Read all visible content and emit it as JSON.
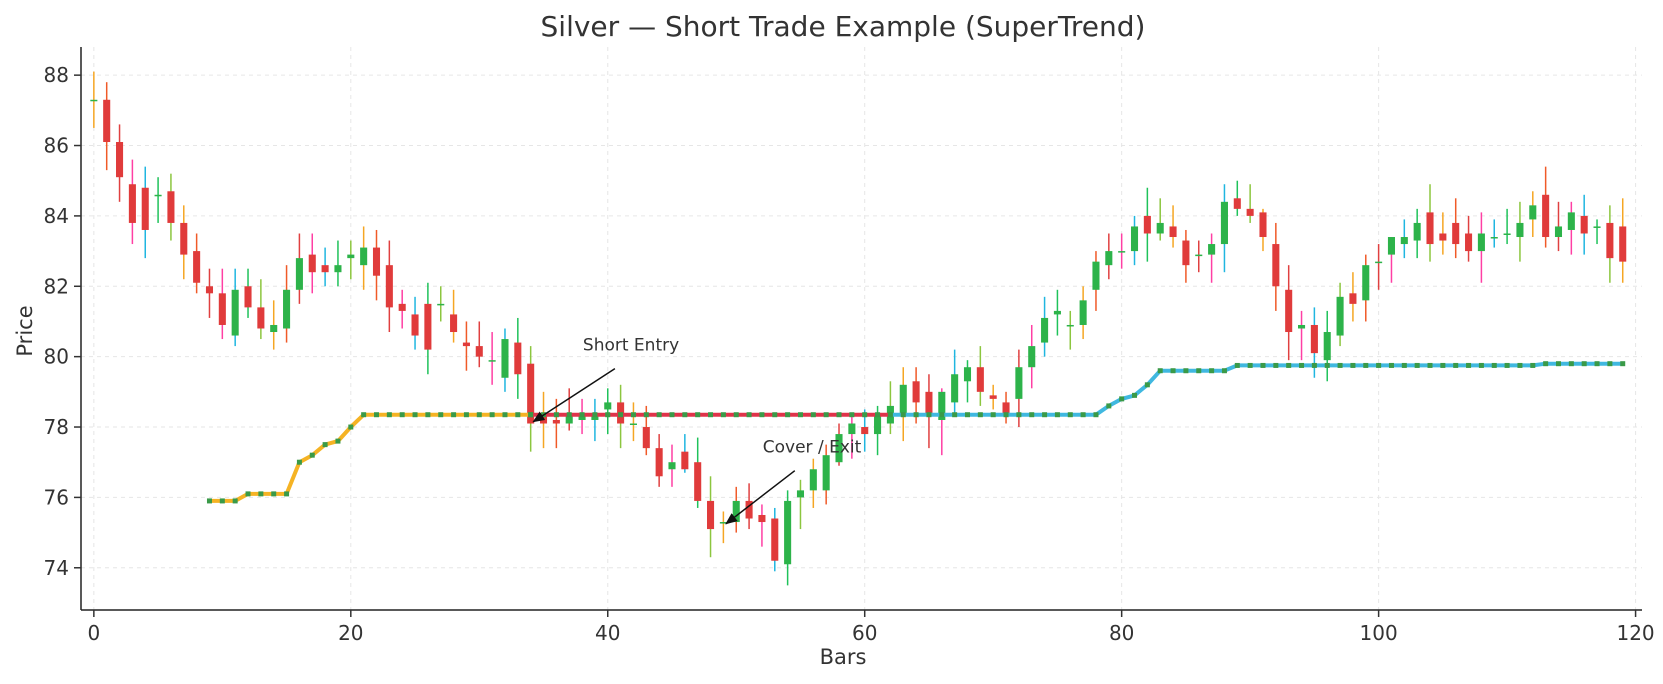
{
  "chart_data": {
    "type": "candlestick",
    "title": "Silver — Short Trade Example (SuperTrend)",
    "xlabel": "Bars",
    "ylabel": "Price",
    "xlim": [
      -1,
      120.5
    ],
    "ylim": [
      72.8,
      88.8
    ],
    "x_ticks": [
      0,
      20,
      40,
      60,
      80,
      100,
      120
    ],
    "y_ticks": [
      74,
      76,
      78,
      80,
      82,
      84,
      86,
      88
    ],
    "grid": true,
    "colors": {
      "up_body": "#2db34a",
      "down_body": "#e03b3b",
      "wicks": [
        "#f5a623",
        "#f05a28",
        "#e04040",
        "#ff3fa4",
        "#1fb6e0",
        "#1fc25a",
        "#8cc63f"
      ],
      "trend_bull_pre": "#f5b324",
      "trend_bear": "#e0334a",
      "trend_bull_post": "#40b8e0",
      "trend_marker": "#3a9a48"
    },
    "candles": [
      [
        87.3,
        88.1,
        86.5,
        87.3
      ],
      [
        87.3,
        87.8,
        85.3,
        86.1
      ],
      [
        86.1,
        86.6,
        84.4,
        85.1
      ],
      [
        84.9,
        85.6,
        83.2,
        83.8
      ],
      [
        84.8,
        85.4,
        82.8,
        83.6
      ],
      [
        84.6,
        85.1,
        83.8,
        84.6
      ],
      [
        84.7,
        85.2,
        83.3,
        83.8
      ],
      [
        83.8,
        84.3,
        82.2,
        82.9
      ],
      [
        83.0,
        83.5,
        81.8,
        82.1
      ],
      [
        82.0,
        82.5,
        81.1,
        81.8
      ],
      [
        81.8,
        82.5,
        80.5,
        80.9
      ],
      [
        80.6,
        82.5,
        80.3,
        81.9
      ],
      [
        82.0,
        82.5,
        81.1,
        81.4
      ],
      [
        81.4,
        82.2,
        80.5,
        80.8
      ],
      [
        80.7,
        81.6,
        80.2,
        80.9
      ],
      [
        80.8,
        82.6,
        80.4,
        81.9
      ],
      [
        81.9,
        83.5,
        81.5,
        82.8
      ],
      [
        82.9,
        83.5,
        81.8,
        82.4
      ],
      [
        82.6,
        83.1,
        82.0,
        82.4
      ],
      [
        82.4,
        83.3,
        82.0,
        82.6
      ],
      [
        82.8,
        83.3,
        82.2,
        82.9
      ],
      [
        82.6,
        83.7,
        81.9,
        83.1
      ],
      [
        83.1,
        83.6,
        81.6,
        82.3
      ],
      [
        82.6,
        83.3,
        80.7,
        81.4
      ],
      [
        81.5,
        81.9,
        80.8,
        81.3
      ],
      [
        81.2,
        81.7,
        80.2,
        80.6
      ],
      [
        81.5,
        82.1,
        79.5,
        80.2
      ],
      [
        81.5,
        82.0,
        81.0,
        81.5
      ],
      [
        81.2,
        81.9,
        80.4,
        80.7
      ],
      [
        80.4,
        81.0,
        79.6,
        80.3
      ],
      [
        80.3,
        81.0,
        79.7,
        80.0
      ],
      [
        79.9,
        80.7,
        79.2,
        79.9
      ],
      [
        79.4,
        80.8,
        79.0,
        80.5
      ],
      [
        80.4,
        81.1,
        78.8,
        79.5
      ],
      [
        79.8,
        80.3,
        77.3,
        78.1
      ],
      [
        78.3,
        79.0,
        77.4,
        78.1
      ],
      [
        78.2,
        78.8,
        77.4,
        78.1
      ],
      [
        78.1,
        79.1,
        77.9,
        78.4
      ],
      [
        78.2,
        78.8,
        77.8,
        78.4
      ],
      [
        78.2,
        78.8,
        77.6,
        78.4
      ],
      [
        78.5,
        79.1,
        77.8,
        78.7
      ],
      [
        78.7,
        79.2,
        77.4,
        78.1
      ],
      [
        78.1,
        78.7,
        77.6,
        78.1
      ],
      [
        78.0,
        78.6,
        77.2,
        77.4
      ],
      [
        77.4,
        77.8,
        76.3,
        76.6
      ],
      [
        76.8,
        77.5,
        76.3,
        77.0
      ],
      [
        77.3,
        77.8,
        76.7,
        76.8
      ],
      [
        77.0,
        77.7,
        75.7,
        75.9
      ],
      [
        75.9,
        76.6,
        74.3,
        75.1
      ],
      [
        75.3,
        75.6,
        74.7,
        75.3
      ],
      [
        75.3,
        76.3,
        75.0,
        75.9
      ],
      [
        75.9,
        76.4,
        75.1,
        75.4
      ],
      [
        75.5,
        75.8,
        74.6,
        75.3
      ],
      [
        75.4,
        75.7,
        73.9,
        74.2
      ],
      [
        74.1,
        76.2,
        73.5,
        75.9
      ],
      [
        76.0,
        76.5,
        75.1,
        76.2
      ],
      [
        76.2,
        77.1,
        75.7,
        76.8
      ],
      [
        76.2,
        77.5,
        75.8,
        77.2
      ],
      [
        77.0,
        78.1,
        76.9,
        77.8
      ],
      [
        77.8,
        78.3,
        77.1,
        78.1
      ],
      [
        78.0,
        78.5,
        77.3,
        77.8
      ],
      [
        77.8,
        78.6,
        77.2,
        78.4
      ],
      [
        78.1,
        79.3,
        77.8,
        78.6
      ],
      [
        78.4,
        79.7,
        77.6,
        79.2
      ],
      [
        79.3,
        79.7,
        78.1,
        78.7
      ],
      [
        79.0,
        79.5,
        77.4,
        78.3
      ],
      [
        78.2,
        79.1,
        77.2,
        79.0
      ],
      [
        78.7,
        80.2,
        78.3,
        79.5
      ],
      [
        79.3,
        79.9,
        78.7,
        79.7
      ],
      [
        79.7,
        80.3,
        78.6,
        79.0
      ],
      [
        78.9,
        79.2,
        78.5,
        78.8
      ],
      [
        78.7,
        79.0,
        78.1,
        78.4
      ],
      [
        78.8,
        80.2,
        78.0,
        79.7
      ],
      [
        79.7,
        80.9,
        79.1,
        80.3
      ],
      [
        80.4,
        81.7,
        80.0,
        81.1
      ],
      [
        81.2,
        81.9,
        80.6,
        81.3
      ],
      [
        80.9,
        81.3,
        80.2,
        80.9
      ],
      [
        80.9,
        82.0,
        80.5,
        81.6
      ],
      [
        81.9,
        83.0,
        81.3,
        82.7
      ],
      [
        82.6,
        83.5,
        82.2,
        83.0
      ],
      [
        83.0,
        83.5,
        82.5,
        83.0
      ],
      [
        83.0,
        84.0,
        82.6,
        83.7
      ],
      [
        84.0,
        84.8,
        82.7,
        83.5
      ],
      [
        83.5,
        84.5,
        83.3,
        83.8
      ],
      [
        83.7,
        84.3,
        83.1,
        83.4
      ],
      [
        83.3,
        83.6,
        82.1,
        82.6
      ],
      [
        82.9,
        83.3,
        82.4,
        82.9
      ],
      [
        82.9,
        83.5,
        82.1,
        83.2
      ],
      [
        83.2,
        84.9,
        82.4,
        84.4
      ],
      [
        84.5,
        85.0,
        84.0,
        84.2
      ],
      [
        84.2,
        84.9,
        83.8,
        84.0
      ],
      [
        84.1,
        84.2,
        83.0,
        83.4
      ],
      [
        83.2,
        83.8,
        81.3,
        82.0
      ],
      [
        81.9,
        82.6,
        79.9,
        80.7
      ],
      [
        80.8,
        81.3,
        79.9,
        80.9
      ],
      [
        80.9,
        81.4,
        79.4,
        80.1
      ],
      [
        79.9,
        81.3,
        79.3,
        80.7
      ],
      [
        80.6,
        82.1,
        80.3,
        81.7
      ],
      [
        81.8,
        82.4,
        81.0,
        81.5
      ],
      [
        81.6,
        82.9,
        81.0,
        82.6
      ],
      [
        82.7,
        83.2,
        81.9,
        82.7
      ],
      [
        82.9,
        83.4,
        82.1,
        83.4
      ],
      [
        83.2,
        83.9,
        82.8,
        83.4
      ],
      [
        83.3,
        84.2,
        82.8,
        83.8
      ],
      [
        84.1,
        84.9,
        82.7,
        83.2
      ],
      [
        83.5,
        84.1,
        82.9,
        83.3
      ],
      [
        83.8,
        84.5,
        82.8,
        83.2
      ],
      [
        83.5,
        84.0,
        82.7,
        83.0
      ],
      [
        83.0,
        84.1,
        82.1,
        83.5
      ],
      [
        83.4,
        83.9,
        83.1,
        83.4
      ],
      [
        83.5,
        84.2,
        83.2,
        83.5
      ],
      [
        83.4,
        84.4,
        82.7,
        83.8
      ],
      [
        83.9,
        84.7,
        83.4,
        84.3
      ],
      [
        84.6,
        85.4,
        83.1,
        83.4
      ],
      [
        83.4,
        84.4,
        83.0,
        83.7
      ],
      [
        83.6,
        84.4,
        82.9,
        84.1
      ],
      [
        84.0,
        84.6,
        82.9,
        83.5
      ],
      [
        83.7,
        83.9,
        83.2,
        83.7
      ],
      [
        83.8,
        84.3,
        82.1,
        82.8
      ],
      [
        83.7,
        84.5,
        82.1,
        82.7
      ]
    ],
    "supertrend": [
      {
        "name": "",
        "x": [
          9,
          10,
          11,
          12,
          13,
          14,
          15,
          16,
          17,
          18,
          19,
          20,
          21,
          22,
          23,
          24,
          25,
          26,
          27,
          28,
          29,
          30,
          31,
          32,
          33,
          34
        ],
        "y": [
          75.9,
          75.9,
          75.9,
          76.1,
          76.1,
          76.1,
          76.1,
          77.0,
          77.2,
          77.5,
          77.6,
          78.0,
          78.35,
          78.35,
          78.35,
          78.35,
          78.35,
          78.35,
          78.35,
          78.35,
          78.35,
          78.35,
          78.35,
          78.35,
          78.35,
          78.35
        ]
      },
      {
        "name": "",
        "x": [
          34,
          35,
          36,
          37,
          38,
          39,
          40,
          41,
          42,
          43,
          44,
          45,
          46,
          47,
          48,
          49,
          50,
          51,
          52,
          53,
          54,
          55,
          56,
          57,
          58,
          59,
          60,
          61,
          62
        ],
        "y": [
          78.35,
          78.35,
          78.35,
          78.35,
          78.35,
          78.35,
          78.35,
          78.35,
          78.35,
          78.35,
          78.35,
          78.35,
          78.35,
          78.35,
          78.35,
          78.35,
          78.35,
          78.35,
          78.35,
          78.35,
          78.35,
          78.35,
          78.35,
          78.35,
          78.35,
          78.35,
          78.35,
          78.35,
          78.35
        ]
      },
      {
        "name": "",
        "x": [
          62,
          63,
          64,
          65,
          66,
          67,
          68,
          69,
          70,
          71,
          72,
          73,
          74,
          75,
          76,
          77,
          78,
          79,
          80,
          81,
          82,
          83,
          84,
          85,
          86,
          87,
          88,
          89,
          90,
          91,
          92,
          93,
          94,
          95,
          96,
          97,
          98,
          99,
          100,
          101,
          102,
          103,
          104,
          105,
          106,
          107,
          108,
          109,
          110,
          111,
          112,
          113,
          114,
          115,
          116,
          117,
          118,
          119
        ],
        "y": [
          78.35,
          78.35,
          78.35,
          78.35,
          78.35,
          78.35,
          78.35,
          78.35,
          78.35,
          78.35,
          78.35,
          78.35,
          78.35,
          78.35,
          78.35,
          78.35,
          78.35,
          78.6,
          78.8,
          78.9,
          79.2,
          79.6,
          79.6,
          79.6,
          79.6,
          79.6,
          79.6,
          79.75,
          79.75,
          79.75,
          79.75,
          79.75,
          79.75,
          79.75,
          79.75,
          79.75,
          79.75,
          79.75,
          79.75,
          79.75,
          79.75,
          79.75,
          79.75,
          79.75,
          79.75,
          79.75,
          79.75,
          79.75,
          79.75,
          79.75,
          79.75,
          79.8,
          79.8,
          79.8,
          79.8,
          79.8,
          79.8,
          79.8
        ]
      }
    ],
    "annotations": [
      {
        "text": "Short Entry",
        "x": 39,
        "y": 80.0,
        "target_x": 34.2,
        "target_y": 78.15
      },
      {
        "text": "Cover / Exit",
        "x": 53,
        "y": 77.1,
        "target_x": 49.2,
        "target_y": 75.25
      }
    ]
  }
}
